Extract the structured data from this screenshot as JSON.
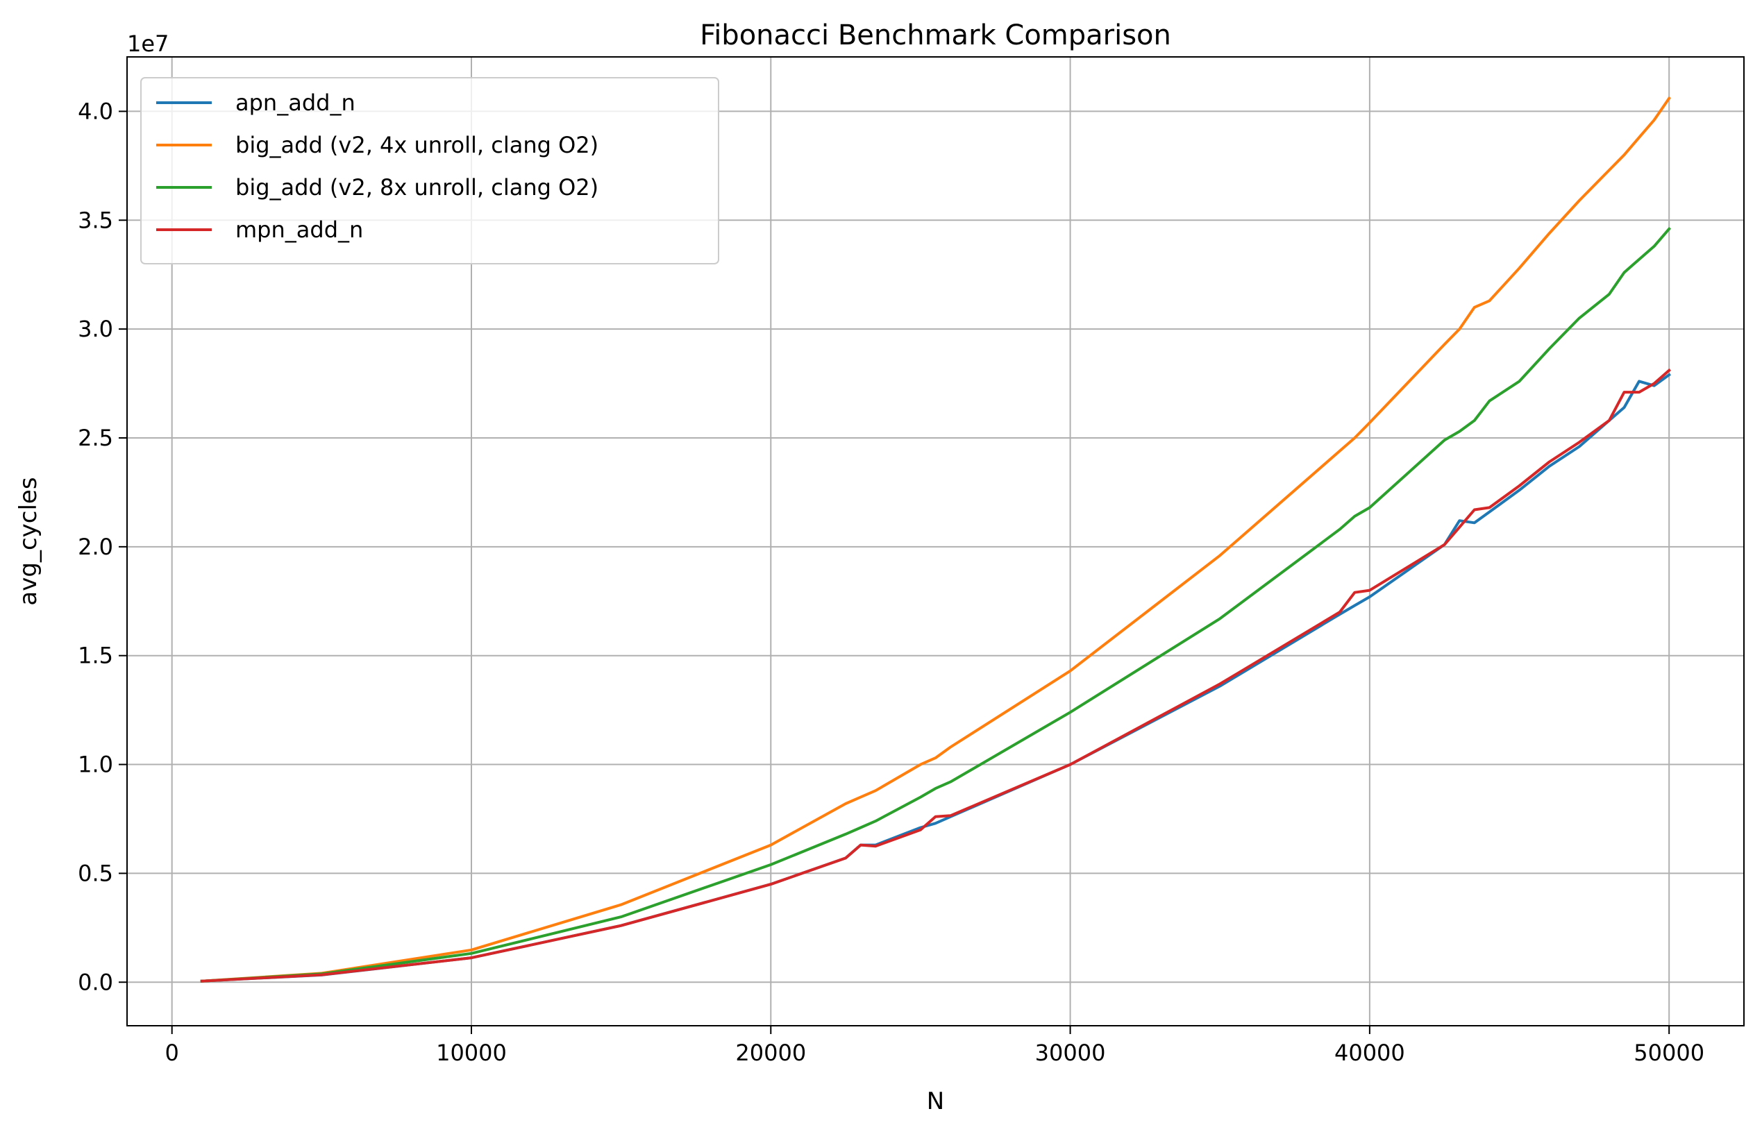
{
  "chart_data": {
    "type": "line",
    "title": "Fibonacci Benchmark Comparison",
    "xlabel": "N",
    "ylabel": "avg_cycles",
    "y_scale_label": "1e7",
    "xlim": [
      -1500,
      52500
    ],
    "ylim": [
      -2000000,
      42500000
    ],
    "y_tick_scale": 10000000,
    "xticks": [
      0,
      10000,
      20000,
      30000,
      40000,
      50000
    ],
    "xtick_labels": [
      "0",
      "10000",
      "20000",
      "30000",
      "40000",
      "50000"
    ],
    "yticks": [
      0,
      5000000,
      10000000,
      15000000,
      20000000,
      25000000,
      30000000,
      35000000,
      40000000
    ],
    "ytick_labels": [
      "0.0",
      "0.5",
      "1.0",
      "1.5",
      "2.0",
      "2.5",
      "3.0",
      "3.5",
      "4.0"
    ],
    "grid": true,
    "legend_position": "top-left",
    "x": [
      1000,
      5000,
      10000,
      15000,
      20000,
      22500,
      23000,
      23500,
      25000,
      25500,
      26000,
      30000,
      35000,
      39000,
      39500,
      40000,
      42500,
      43000,
      43500,
      44000,
      45000,
      46000,
      47000,
      48000,
      48500,
      49000,
      49500,
      50000
    ],
    "series": [
      {
        "name": "apn_add_n",
        "color": "#1f77b4",
        "values": [
          50000,
          330000,
          1120000,
          2600000,
          4500000,
          5700000,
          6300000,
          6300000,
          7100000,
          7300000,
          7600000,
          10000000,
          13600000,
          16900000,
          17300000,
          17700000,
          20100000,
          21200000,
          21100000,
          21600000,
          22600000,
          23700000,
          24600000,
          25800000,
          26400000,
          27600000,
          27400000,
          27900000
        ]
      },
      {
        "name": "big_add (v2, 4x unroll, clang O2)",
        "color": "#ff7f0e",
        "values": [
          50000,
          410000,
          1480000,
          3560000,
          6300000,
          8200000,
          8500000,
          8800000,
          10000000,
          10300000,
          10800000,
          14300000,
          19600000,
          24400000,
          25000000,
          25700000,
          29300000,
          30000000,
          31000000,
          31300000,
          32800000,
          34400000,
          35900000,
          37300000,
          38000000,
          38800000,
          39600000,
          40600000
        ]
      },
      {
        "name": "big_add (v2, 8x unroll, clang O2)",
        "color": "#2ca02c",
        "values": [
          50000,
          380000,
          1320000,
          3000000,
          5400000,
          6800000,
          7100000,
          7400000,
          8500000,
          8900000,
          9200000,
          12400000,
          16700000,
          20800000,
          21400000,
          21800000,
          24900000,
          25300000,
          25800000,
          26700000,
          27600000,
          29100000,
          30500000,
          31600000,
          32600000,
          33200000,
          33800000,
          34600000
        ]
      },
      {
        "name": "mpn_add_n",
        "color": "#d62728",
        "values": [
          50000,
          340000,
          1120000,
          2600000,
          4500000,
          5700000,
          6300000,
          6250000,
          7000000,
          7600000,
          7650000,
          10000000,
          13700000,
          17000000,
          17900000,
          18000000,
          20100000,
          20900000,
          21700000,
          21800000,
          22800000,
          23900000,
          24800000,
          25800000,
          27100000,
          27100000,
          27500000,
          28100000
        ]
      }
    ]
  }
}
